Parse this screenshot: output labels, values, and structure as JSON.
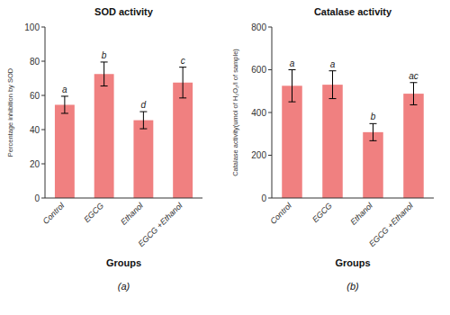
{
  "chart_data": [
    {
      "type": "bar",
      "title": "SOD activity",
      "subtitle": "(a)",
      "xlabel": "Groups",
      "ylabel": "Percentage inhibition by SOD",
      "categories": [
        "Control",
        "EGCG",
        "Ethanol",
        "EGCG +Ethanol"
      ],
      "values": [
        54.5,
        72.5,
        45.5,
        67.5
      ],
      "errors": [
        5.0,
        7.0,
        5.0,
        9.0
      ],
      "annotations": [
        "a",
        "b",
        "d",
        "c"
      ],
      "color": "#F08080",
      "ylim": [
        0,
        100
      ],
      "yticks": [
        0,
        20,
        40,
        60,
        80,
        100
      ],
      "grid": false
    },
    {
      "type": "bar",
      "title": "Catalase activity",
      "subtitle": "(b)",
      "xlabel": "Groups",
      "ylabel": "Catalase activity(umol of H₂O₂/l of sample)",
      "categories": [
        "Control",
        "EGCG",
        "Ethanol",
        "EGCG +Ethanol"
      ],
      "values": [
        525,
        530,
        308,
        488
      ],
      "errors": [
        75,
        65,
        40,
        52
      ],
      "annotations": [
        "a",
        "a",
        "b",
        "ac"
      ],
      "color": "#F08080",
      "ylim": [
        0,
        800
      ],
      "yticks": [
        0,
        200,
        400,
        600,
        800
      ],
      "grid": false
    }
  ]
}
